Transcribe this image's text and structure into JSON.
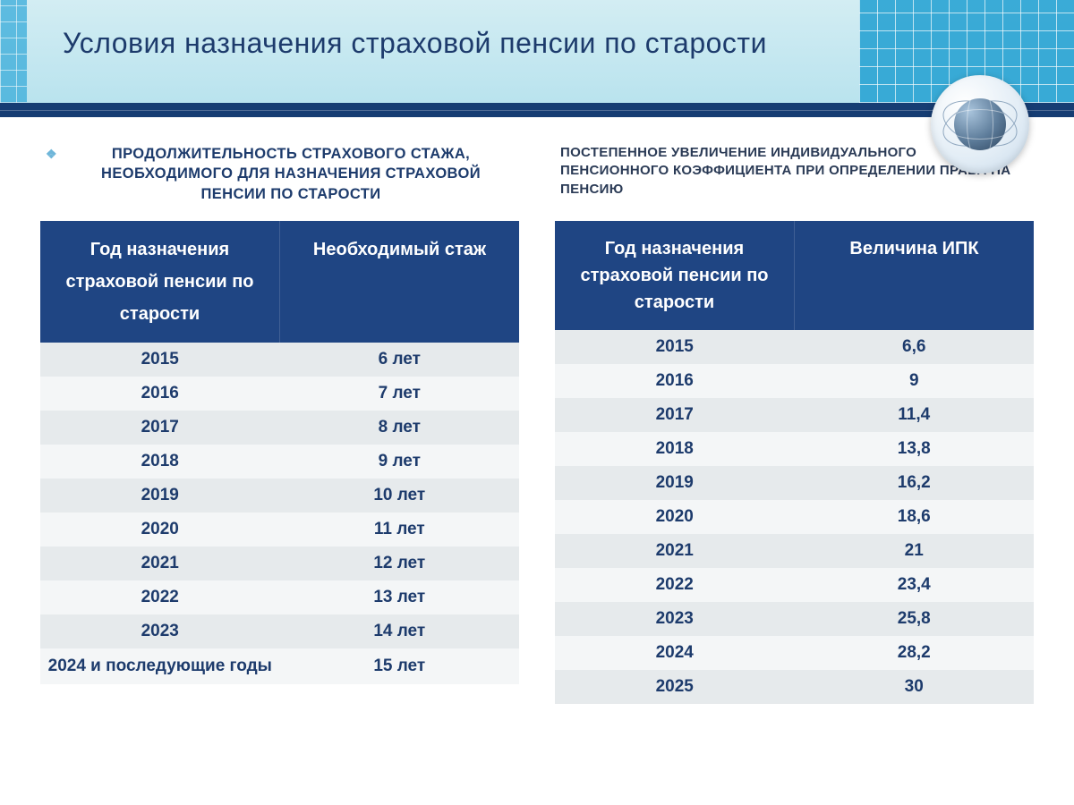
{
  "slide": {
    "title": "Условия назначения  страховой пенсии по старости"
  },
  "left": {
    "section_title": "ПРОДОЛЖИТЕЛЬНОСТЬ СТРАХОВОГО СТАЖА, НЕОБХОДИМОГО ДЛЯ НАЗНАЧЕНИЯ СТРАХОВОЙ ПЕНСИИ ПО СТАРОСТИ",
    "col1": "Год назначения страховой пенсии по старости",
    "col2": "Необходимый стаж",
    "rows": [
      {
        "y": "2015",
        "v": "6 лет"
      },
      {
        "y": "2016",
        "v": "7 лет"
      },
      {
        "y": "2017",
        "v": "8 лет"
      },
      {
        "y": "2018",
        "v": "9 лет"
      },
      {
        "y": "2019",
        "v": "10 лет"
      },
      {
        "y": "2020",
        "v": "11 лет"
      },
      {
        "y": "2021",
        "v": "12 лет"
      },
      {
        "y": "2022",
        "v": "13 лет"
      },
      {
        "y": "2023",
        "v": "14 лет"
      },
      {
        "y": "2024 и последующие годы",
        "v": "15 лет"
      }
    ]
  },
  "right": {
    "section_title": "ПОСТЕПЕННОЕ УВЕЛИЧЕНИЕ  ИНДИВИДУАЛЬНОГО ПЕНСИОННОГО  КОЭФФИЦИЕНТА ПРИ ОПРЕДЕЛЕНИИ ПРАВА НА ПЕНСИЮ",
    "col1": "Год назначения страховой пенсии по старости",
    "col2": "Величина ИПК",
    "rows": [
      {
        "y": "2015",
        "v": "6,6"
      },
      {
        "y": "2016",
        "v": "9"
      },
      {
        "y": "2017",
        "v": "11,4"
      },
      {
        "y": "2018",
        "v": "13,8"
      },
      {
        "y": "2019",
        "v": "16,2"
      },
      {
        "y": "2020",
        "v": "18,6"
      },
      {
        "y": "2021",
        "v": "21"
      },
      {
        "y": "2022",
        "v": "23,4"
      },
      {
        "y": "2023",
        "v": "25,8"
      },
      {
        "y": "2024",
        "v": "28,2"
      },
      {
        "y": "2025",
        "v": "30"
      }
    ]
  },
  "colors": {
    "header_navy": "#1f4583",
    "text_navy": "#1d3b6c",
    "row_odd": "#e6eaec",
    "row_even": "#f4f6f7",
    "band_cyan": "#b9e3ee"
  }
}
